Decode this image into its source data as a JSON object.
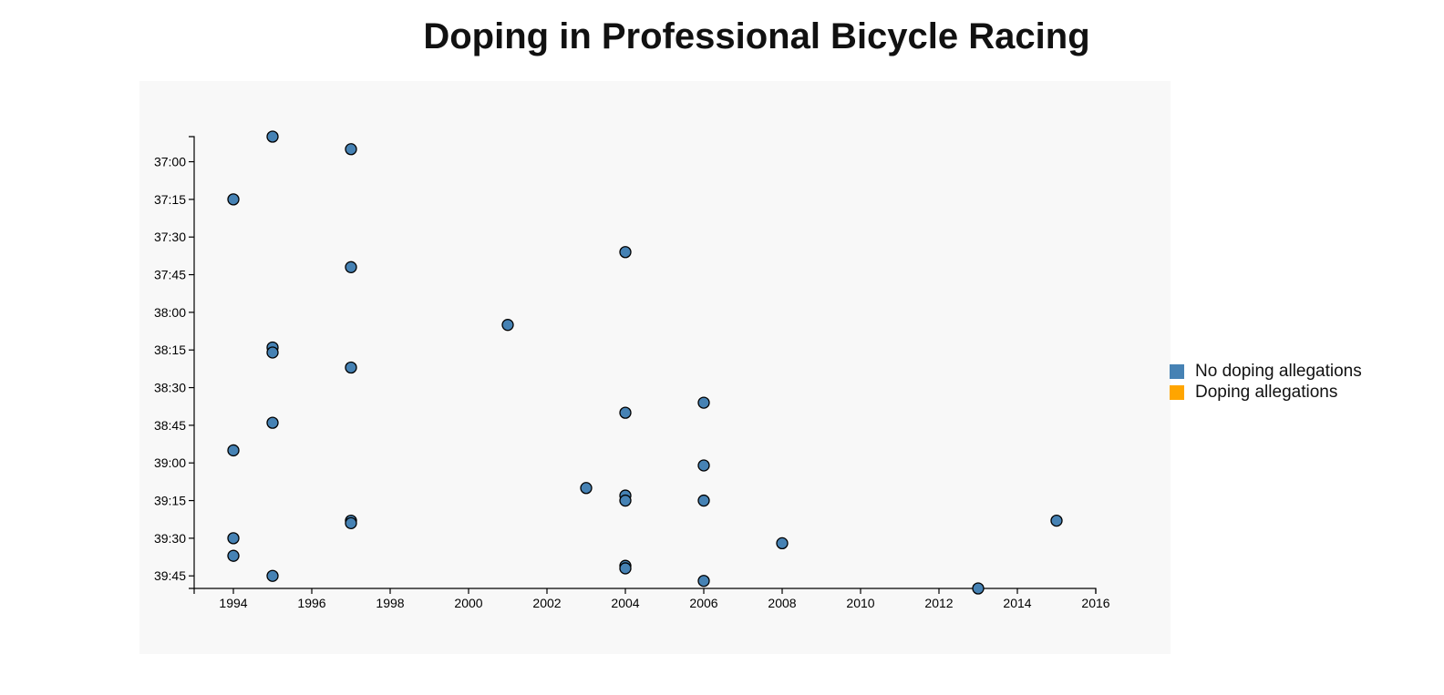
{
  "chart_data": {
    "type": "scatter",
    "title": "Doping in Professional Bicycle Racing",
    "xlabel": "",
    "ylabel": "",
    "x_ticks": [
      1994,
      1996,
      1998,
      2000,
      2002,
      2004,
      2006,
      2008,
      2010,
      2012,
      2014,
      2016
    ],
    "y_ticks": [
      "37:00",
      "37:15",
      "37:30",
      "37:45",
      "38:00",
      "38:15",
      "38:30",
      "38:45",
      "39:00",
      "39:15",
      "39:30",
      "39:45"
    ],
    "xlim": [
      1993,
      2016
    ],
    "ylim_seconds": [
      2210,
      2390
    ],
    "y_axis_inverted": true,
    "grid": false,
    "legend_position": "right",
    "legend": [
      {
        "label": "No doping allegations",
        "color": "#4682b4"
      },
      {
        "label": "Doping allegations",
        "color": "#ffa500"
      }
    ],
    "series": [
      {
        "color": "#4682b4",
        "points": [
          {
            "x": 1995,
            "y_seconds": 2210
          },
          {
            "x": 1997,
            "y_seconds": 2215
          },
          {
            "x": 1994,
            "y_seconds": 2235
          },
          {
            "x": 2004,
            "y_seconds": 2256
          },
          {
            "x": 1997,
            "y_seconds": 2262
          },
          {
            "x": 2001,
            "y_seconds": 2285
          },
          {
            "x": 1995,
            "y_seconds": 2294
          },
          {
            "x": 1995,
            "y_seconds": 2296
          },
          {
            "x": 1997,
            "y_seconds": 2302
          },
          {
            "x": 2006,
            "y_seconds": 2316
          },
          {
            "x": 2004,
            "y_seconds": 2320
          },
          {
            "x": 1995,
            "y_seconds": 2324
          },
          {
            "x": 1994,
            "y_seconds": 2335
          },
          {
            "x": 2006,
            "y_seconds": 2341
          },
          {
            "x": 2003,
            "y_seconds": 2350
          },
          {
            "x": 2004,
            "y_seconds": 2353
          },
          {
            "x": 2004,
            "y_seconds": 2355
          },
          {
            "x": 2006,
            "y_seconds": 2355
          },
          {
            "x": 1997,
            "y_seconds": 2363
          },
          {
            "x": 1997,
            "y_seconds": 2364
          },
          {
            "x": 2015,
            "y_seconds": 2363
          },
          {
            "x": 1994,
            "y_seconds": 2370
          },
          {
            "x": 2008,
            "y_seconds": 2372
          },
          {
            "x": 1994,
            "y_seconds": 2377
          },
          {
            "x": 2004,
            "y_seconds": 2381
          },
          {
            "x": 2004,
            "y_seconds": 2382
          },
          {
            "x": 1995,
            "y_seconds": 2385
          },
          {
            "x": 2006,
            "y_seconds": 2387
          },
          {
            "x": 2013,
            "y_seconds": 2390
          }
        ]
      }
    ]
  }
}
